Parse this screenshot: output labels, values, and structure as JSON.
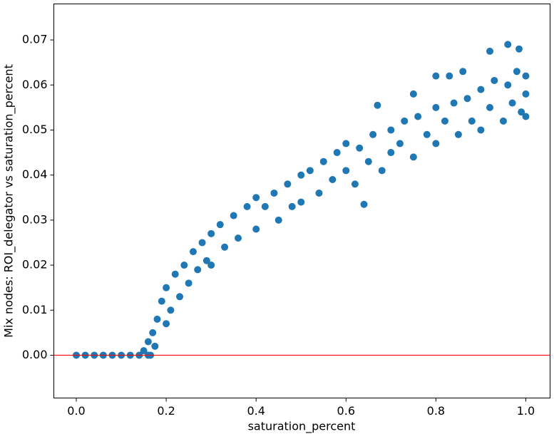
{
  "chart_data": {
    "type": "scatter",
    "xlabel": "saturation_percent",
    "ylabel": "Mix nodes:  ROI_delegator  vs  saturation_percent",
    "color": "#1f77b4",
    "hline": {
      "value": 0,
      "color": "#ff0000"
    },
    "xlim": [
      -0.05,
      1.054
    ],
    "ylim": [
      -0.0095,
      0.078
    ],
    "xticks": [
      {
        "value": 0,
        "label": "0.0"
      },
      0.2,
      0.4,
      0.6,
      0.8,
      {
        "value": 1,
        "label": "1.0"
      }
    ],
    "yticks": [
      {
        "value": 0,
        "label": "0.00"
      },
      0.01,
      0.02,
      0.03,
      0.04,
      0.05,
      0.06,
      0.07
    ],
    "x": [
      0,
      0.02,
      0.04,
      0.06,
      0.08,
      0.1,
      0.12,
      0.14,
      0.16,
      0.165,
      0.15,
      0.16,
      0.17,
      0.175,
      0.18,
      0.19,
      0.2,
      0.2,
      0.21,
      0.22,
      0.23,
      0.24,
      0.25,
      0.26,
      0.27,
      0.28,
      0.29,
      0.3,
      0.3,
      0.32,
      0.33,
      0.35,
      0.36,
      0.38,
      0.4,
      0.4,
      0.42,
      0.44,
      0.45,
      0.47,
      0.48,
      0.5,
      0.5,
      0.52,
      0.54,
      0.55,
      0.57,
      0.58,
      0.6,
      0.6,
      0.62,
      0.63,
      0.65,
      0.66,
      0.68,
      0.7,
      0.7,
      0.72,
      0.73,
      0.75,
      0.76,
      0.78,
      0.8,
      0.8,
      0.82,
      0.84,
      0.85,
      0.87,
      0.88,
      0.9,
      0.9,
      0.92,
      0.93,
      0.95,
      0.96,
      0.97,
      0.98,
      0.99,
      1.0,
      1.0,
      1.0,
      0.92,
      0.96,
      0.985,
      0.8,
      0.83,
      0.86,
      0.75,
      0.67,
      0.64
    ],
    "y": [
      0,
      0,
      0,
      0,
      0,
      0,
      0,
      0,
      0,
      0,
      0.001,
      0.003,
      0.005,
      0.002,
      0.008,
      0.012,
      0.015,
      0.007,
      0.01,
      0.018,
      0.013,
      0.02,
      0.016,
      0.023,
      0.019,
      0.025,
      0.021,
      0.027,
      0.02,
      0.029,
      0.024,
      0.031,
      0.026,
      0.033,
      0.028,
      0.035,
      0.033,
      0.036,
      0.03,
      0.038,
      0.033,
      0.04,
      0.034,
      0.041,
      0.036,
      0.043,
      0.039,
      0.045,
      0.041,
      0.047,
      0.038,
      0.046,
      0.043,
      0.049,
      0.041,
      0.05,
      0.045,
      0.047,
      0.052,
      0.044,
      0.053,
      0.049,
      0.055,
      0.047,
      0.052,
      0.056,
      0.049,
      0.057,
      0.052,
      0.059,
      0.05,
      0.055,
      0.061,
      0.052,
      0.06,
      0.056,
      0.063,
      0.054,
      0.058,
      0.062,
      0.053,
      0.0675,
      0.069,
      0.068,
      0.062,
      0.062,
      0.063,
      0.058,
      0.0555,
      0.0335
    ]
  }
}
